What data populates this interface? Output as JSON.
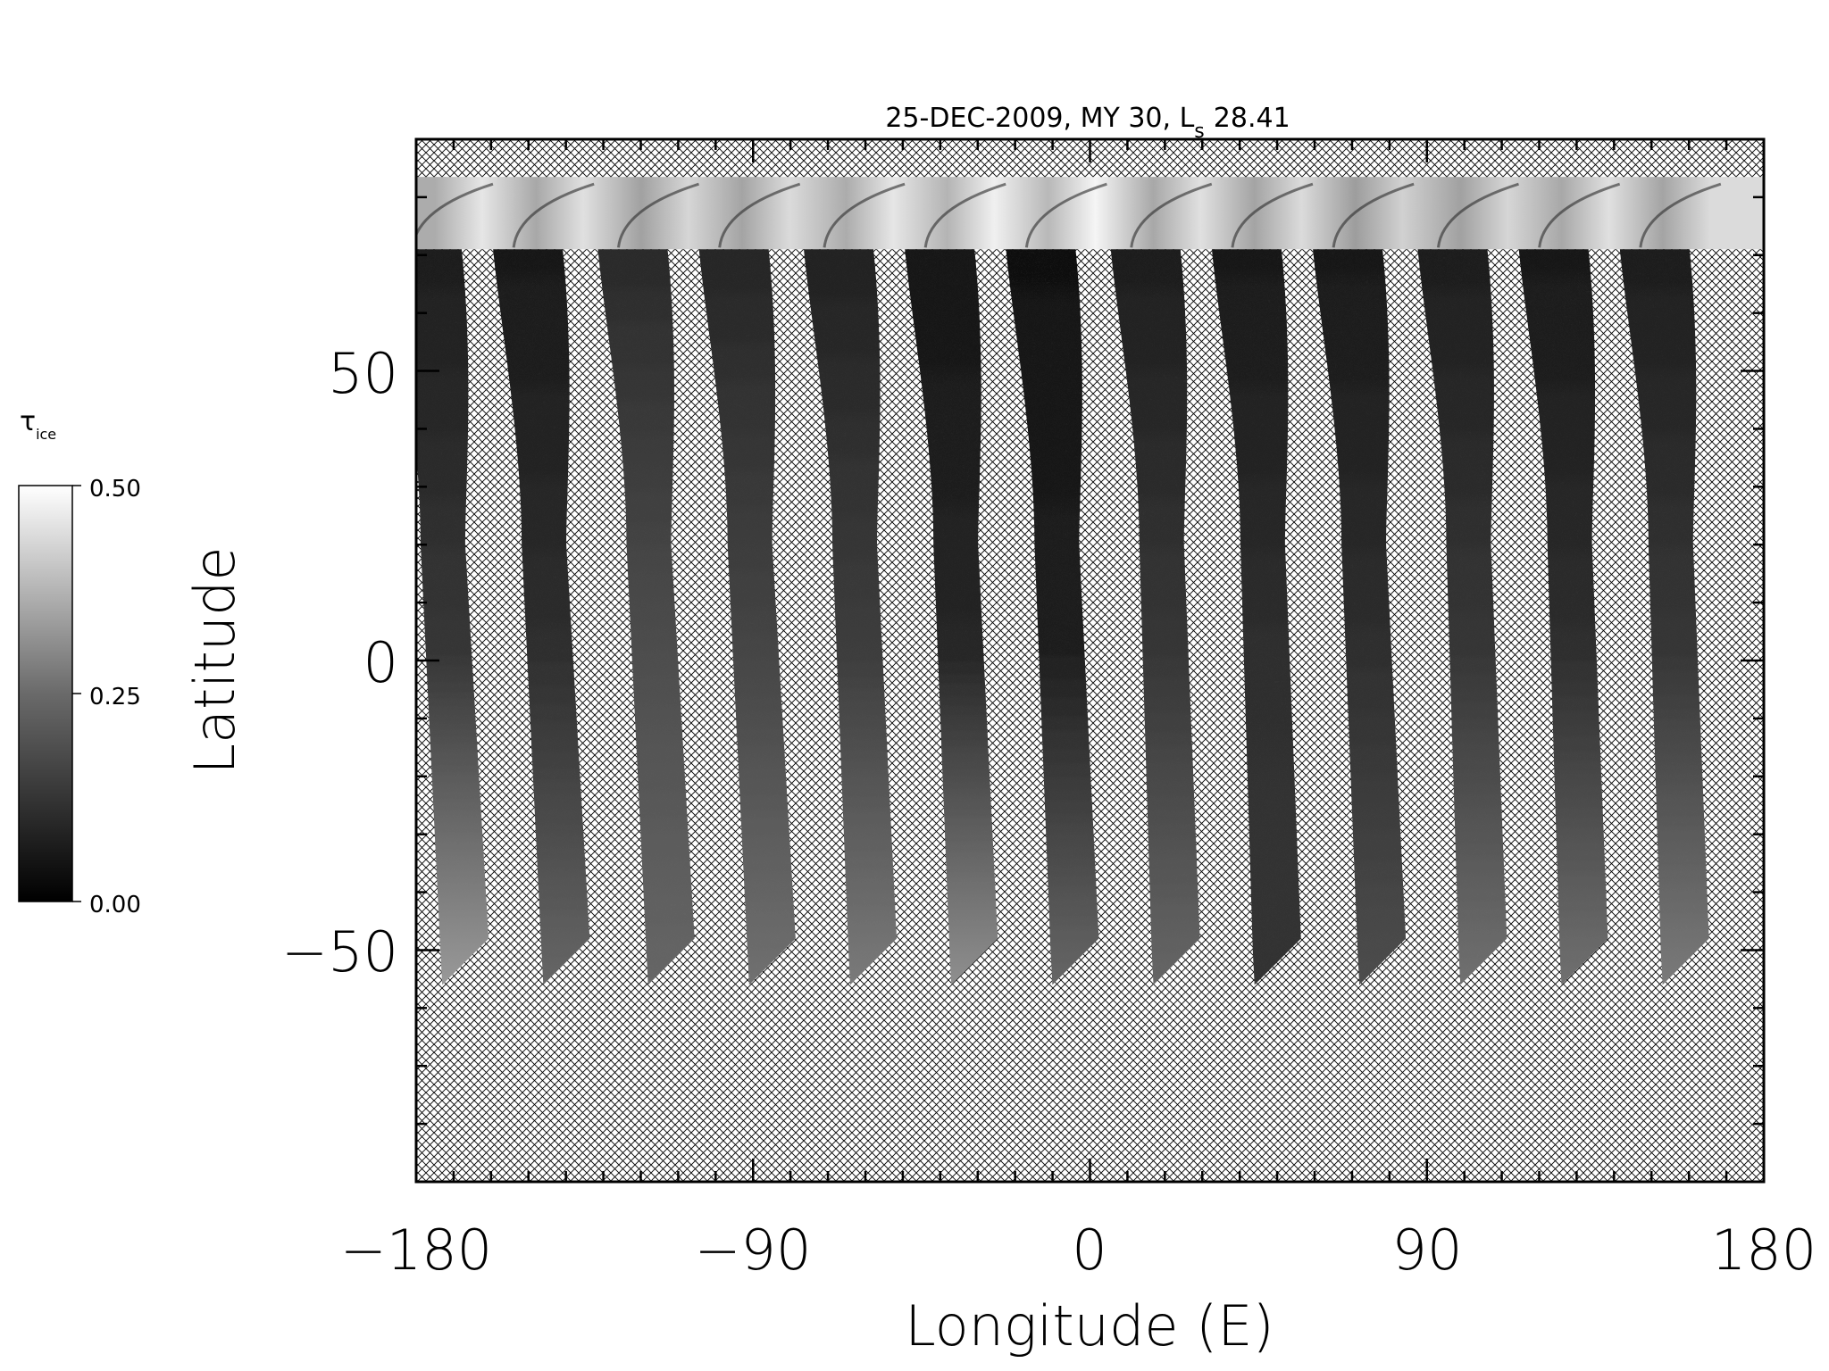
{
  "chart_data": {
    "type": "heatmap",
    "title": "25-DEC-2009, MY 30,  L",
    "title_subscript": "s",
    "title_value": "28.41",
    "xlabel": "Longitude (E)",
    "ylabel": "Latitude",
    "xlim": [
      -180,
      180
    ],
    "ylim": [
      -90,
      90
    ],
    "x_ticks": [
      -180,
      -90,
      0,
      90,
      180
    ],
    "x_tick_labels": [
      "−180",
      "−90",
      "0",
      "90",
      "180"
    ],
    "y_ticks": [
      -50,
      0,
      50
    ],
    "y_tick_labels": [
      "−50",
      "0",
      "50"
    ],
    "missing_data_pattern": "crosshatch",
    "colormap": "grayscale",
    "colorbar": {
      "label": "τ",
      "label_subscript": "ice",
      "range": [
        0.0,
        0.5
      ],
      "ticks": [
        0.0,
        0.25,
        0.5
      ],
      "tick_labels": [
        "0.00",
        "0.25",
        "0.50"
      ],
      "placement": "left",
      "color_min": "#000000",
      "color_max": "#ffffff"
    },
    "swaths": [
      {
        "lon_north": -175,
        "lon_south": -174,
        "top_tau": 0.45,
        "mid_tau": 0.07,
        "bottom_tau": 0.3
      },
      {
        "lon_north": -148,
        "lon_south": -147,
        "top_tau": 0.44,
        "mid_tau": 0.06,
        "bottom_tau": 0.2
      },
      {
        "lon_north": -120,
        "lon_south": -119,
        "top_tau": 0.42,
        "mid_tau": 0.1,
        "bottom_tau": 0.2
      },
      {
        "lon_north": -93,
        "lon_south": -92,
        "top_tau": 0.43,
        "mid_tau": 0.09,
        "bottom_tau": 0.22
      },
      {
        "lon_north": -65,
        "lon_south": -65,
        "top_tau": 0.45,
        "mid_tau": 0.08,
        "bottom_tau": 0.24
      },
      {
        "lon_north": -38,
        "lon_south": -38,
        "top_tau": 0.47,
        "mid_tau": 0.05,
        "bottom_tau": 0.28
      },
      {
        "lon_north": -11,
        "lon_south": -11,
        "top_tau": 0.48,
        "mid_tau": 0.04,
        "bottom_tau": 0.2
      },
      {
        "lon_north": 17,
        "lon_south": 16,
        "top_tau": 0.44,
        "mid_tau": 0.07,
        "bottom_tau": 0.2
      },
      {
        "lon_north": 44,
        "lon_south": 43,
        "top_tau": 0.43,
        "mid_tau": 0.06,
        "bottom_tau": 0.1
      },
      {
        "lon_north": 71,
        "lon_south": 71,
        "top_tau": 0.41,
        "mid_tau": 0.06,
        "bottom_tau": 0.15
      },
      {
        "lon_north": 99,
        "lon_south": 98,
        "top_tau": 0.42,
        "mid_tau": 0.07,
        "bottom_tau": 0.22
      },
      {
        "lon_north": 126,
        "lon_south": 125,
        "top_tau": 0.44,
        "mid_tau": 0.06,
        "bottom_tau": 0.22
      },
      {
        "lon_north": 153,
        "lon_south": 152,
        "top_tau": 0.43,
        "mid_tau": 0.07,
        "bottom_tau": 0.24
      }
    ]
  }
}
